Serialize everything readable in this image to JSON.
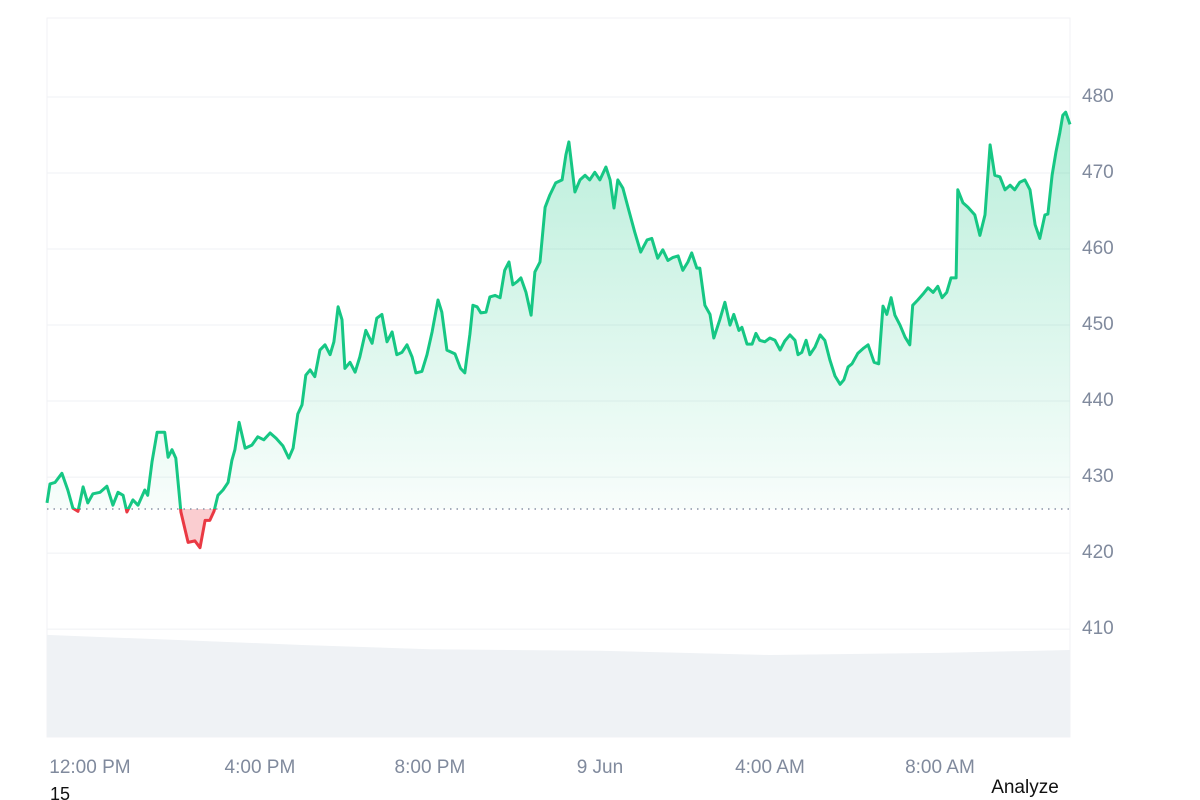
{
  "chart_data": {
    "type": "line",
    "x": [
      10.99,
      11.06,
      11.18,
      11.34,
      11.48,
      11.6,
      11.72,
      11.84,
      11.95,
      12.07,
      12.24,
      12.4,
      12.54,
      12.66,
      12.78,
      12.87,
      13.01,
      13.13,
      13.29,
      13.36,
      13.46,
      13.58,
      13.76,
      13.84,
      13.93,
      14.02,
      14.14,
      14.31,
      14.47,
      14.59,
      14.71,
      14.82,
      14.92,
      15.01,
      15.13,
      15.25,
      15.34,
      15.41,
      15.51,
      15.65,
      15.81,
      15.95,
      16.09,
      16.24,
      16.38,
      16.54,
      16.68,
      16.78,
      16.89,
      16.99,
      17.08,
      17.18,
      17.29,
      17.41,
      17.53,
      17.65,
      17.74,
      17.84,
      17.93,
      18.0,
      18.12,
      18.24,
      18.35,
      18.49,
      18.64,
      18.75,
      18.87,
      18.99,
      19.11,
      19.22,
      19.34,
      19.46,
      19.58,
      19.67,
      19.81,
      19.93,
      20.05,
      20.19,
      20.28,
      20.4,
      20.59,
      20.72,
      20.82,
      20.94,
      21.01,
      21.11,
      21.2,
      21.32,
      21.41,
      21.53,
      21.65,
      21.76,
      21.86,
      21.95,
      22.05,
      22.14,
      22.26,
      22.38,
      22.47,
      22.59,
      22.71,
      22.82,
      22.96,
      23.11,
      23.2,
      23.27,
      23.41,
      23.53,
      23.65,
      23.76,
      23.88,
      24.0,
      24.14,
      24.24,
      24.33,
      24.42,
      24.54,
      24.68,
      24.82,
      24.96,
      25.11,
      25.22,
      25.36,
      25.48,
      25.6,
      25.72,
      25.84,
      25.95,
      26.07,
      26.16,
      26.28,
      26.35,
      26.47,
      26.59,
      26.68,
      26.82,
      26.94,
      27.06,
      27.15,
      27.27,
      27.34,
      27.46,
      27.58,
      27.67,
      27.76,
      27.88,
      28.0,
      28.12,
      28.24,
      28.35,
      28.47,
      28.59,
      28.66,
      28.75,
      28.85,
      28.94,
      29.06,
      29.18,
      29.29,
      29.41,
      29.53,
      29.65,
      29.74,
      29.84,
      29.93,
      30.07,
      30.21,
      30.31,
      30.45,
      30.56,
      30.66,
      30.75,
      30.85,
      30.94,
      31.06,
      31.18,
      31.29,
      31.36,
      31.48,
      31.62,
      31.72,
      31.84,
      31.95,
      32.05,
      32.16,
      32.26,
      32.38,
      32.42,
      32.54,
      32.66,
      32.82,
      32.94,
      33.06,
      33.18,
      33.29,
      33.41,
      33.53,
      33.65,
      33.76,
      33.88,
      34.0,
      34.12,
      34.24,
      34.35,
      34.47,
      34.54,
      34.64,
      34.73,
      34.82,
      34.89,
      34.96,
      35.06
    ],
    "values": [
      426.6,
      429.1,
      429.3,
      430.5,
      428.3,
      425.9,
      425.5,
      428.7,
      426.6,
      427.8,
      428.0,
      428.8,
      426.3,
      428.0,
      427.6,
      425.4,
      427.0,
      426.3,
      428.3,
      427.6,
      432.0,
      435.9,
      435.9,
      432.6,
      433.6,
      432.5,
      425.4,
      421.4,
      421.6,
      420.7,
      424.3,
      424.3,
      425.5,
      427.6,
      428.3,
      429.3,
      432.2,
      433.6,
      437.2,
      433.8,
      434.2,
      435.3,
      434.9,
      435.8,
      435.1,
      434.1,
      432.5,
      433.8,
      438.3,
      439.5,
      443.4,
      444.1,
      443.2,
      446.7,
      447.4,
      446.1,
      447.8,
      452.4,
      450.7,
      444.3,
      445.1,
      443.8,
      445.8,
      449.3,
      447.6,
      450.9,
      451.4,
      447.8,
      449.1,
      446.1,
      446.4,
      447.4,
      445.8,
      443.7,
      443.9,
      446.1,
      449.1,
      453.3,
      451.7,
      446.7,
      446.2,
      444.3,
      443.7,
      448.8,
      452.6,
      452.4,
      451.6,
      451.7,
      453.7,
      453.9,
      453.6,
      457.2,
      458.3,
      455.3,
      455.7,
      456.2,
      454.3,
      451.3,
      457.0,
      458.3,
      465.5,
      467.1,
      468.7,
      469.1,
      472.4,
      474.1,
      467.5,
      469.1,
      469.7,
      469.1,
      470.1,
      469.1,
      470.8,
      469.1,
      465.4,
      469.1,
      468.0,
      465.1,
      462.2,
      459.6,
      461.2,
      461.4,
      458.8,
      459.9,
      458.5,
      458.9,
      459.1,
      457.2,
      458.3,
      459.5,
      457.5,
      457.5,
      452.6,
      451.4,
      448.3,
      450.7,
      453.0,
      450.0,
      451.4,
      449.3,
      449.7,
      447.5,
      447.5,
      448.9,
      448.0,
      447.8,
      448.3,
      448.0,
      446.7,
      447.9,
      448.7,
      448.0,
      446.1,
      446.4,
      448.0,
      446.1,
      447.1,
      448.7,
      448.0,
      445.4,
      443.3,
      442.2,
      442.8,
      444.5,
      444.9,
      446.3,
      447.0,
      447.4,
      445.1,
      444.9,
      452.5,
      451.4,
      453.6,
      451.3,
      450.0,
      448.4,
      447.4,
      452.6,
      453.3,
      454.2,
      454.9,
      454.3,
      455.1,
      453.6,
      454.3,
      456.2,
      456.2,
      467.8,
      466.1,
      465.5,
      464.5,
      461.8,
      464.5,
      473.7,
      469.7,
      469.5,
      467.8,
      468.4,
      467.8,
      468.8,
      469.1,
      467.8,
      463.2,
      461.4,
      464.5,
      464.6,
      469.7,
      472.8,
      475.3,
      477.6,
      478.0,
      476.4
    ],
    "color": "#16c784",
    "color_below": "#ea3943",
    "baseline": 425.8,
    "xlim": [
      10.99,
      35.06
    ],
    "xticks": [
      {
        "value": 12,
        "label": "12:00 PM"
      },
      {
        "value": 16,
        "label": "4:00 PM"
      },
      {
        "value": 20,
        "label": "8:00 PM"
      },
      {
        "value": 24,
        "label": "9 Jun"
      },
      {
        "value": 28,
        "label": "4:00 AM"
      },
      {
        "value": 32,
        "label": "8:00 AM"
      }
    ],
    "ylim": [
      395.8,
      490.4
    ],
    "yticks": [
      410,
      420,
      430,
      440,
      450,
      460,
      470,
      480
    ],
    "grid": true,
    "volume": {
      "x": [
        10.99,
        14,
        17,
        20,
        24,
        28,
        32,
        35.06
      ],
      "values": [
        14.2,
        13.5,
        12.8,
        12.2,
        12.0,
        11.4,
        11.7,
        12.1
      ],
      "color": "#eff2f5"
    },
    "y2lim": [
      0,
      100
    ]
  },
  "footer": {
    "page": "15",
    "action": "Analyze"
  }
}
